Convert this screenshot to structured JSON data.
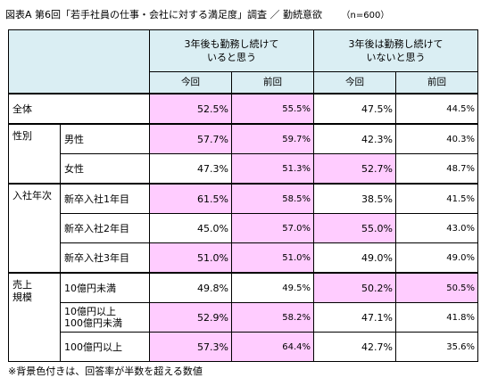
{
  "title": "図表A  第6回「若手社員の仕事・会社に対する満足度」調査  ／  勤続意欲",
  "sample": "（n=600）",
  "headers": {
    "group1": "3年後も勤務し続けて\nいると思う",
    "group2": "3年後は勤務し続けて\nいないと思う",
    "current": "今回",
    "previous": "前回"
  },
  "rows": [
    {
      "segment": "全体",
      "label": "",
      "v": [
        "52.5%",
        "55.5%",
        "47.5%",
        "44.5%"
      ],
      "hl": [
        1,
        1,
        0,
        0
      ]
    },
    {
      "segment": "性別",
      "label": "男性",
      "v": [
        "57.7%",
        "59.7%",
        "42.3%",
        "40.3%"
      ],
      "hl": [
        1,
        1,
        0,
        0
      ]
    },
    {
      "segment": "",
      "label": "女性",
      "v": [
        "47.3%",
        "51.3%",
        "52.7%",
        "48.7%"
      ],
      "hl": [
        0,
        1,
        1,
        0
      ]
    },
    {
      "segment": "入社年次",
      "label": "新卒入社1年目",
      "v": [
        "61.5%",
        "58.5%",
        "38.5%",
        "41.5%"
      ],
      "hl": [
        1,
        1,
        0,
        0
      ]
    },
    {
      "segment": "",
      "label": "新卒入社2年目",
      "v": [
        "45.0%",
        "57.0%",
        "55.0%",
        "43.0%"
      ],
      "hl": [
        0,
        1,
        1,
        0
      ]
    },
    {
      "segment": "",
      "label": "新卒入社3年目",
      "v": [
        "51.0%",
        "51.0%",
        "49.0%",
        "49.0%"
      ],
      "hl": [
        1,
        1,
        0,
        0
      ]
    },
    {
      "segment": "売上\n規模",
      "label": "10億円未満",
      "v": [
        "49.8%",
        "49.5%",
        "50.2%",
        "50.5%"
      ],
      "hl": [
        0,
        0,
        1,
        1
      ]
    },
    {
      "segment": "",
      "label": "10億円以上\n100億円未満",
      "v": [
        "52.9%",
        "58.2%",
        "47.1%",
        "41.8%"
      ],
      "hl": [
        1,
        1,
        0,
        0
      ]
    },
    {
      "segment": "",
      "label": "100億円以上",
      "v": [
        "57.3%",
        "64.4%",
        "42.7%",
        "35.6%"
      ],
      "hl": [
        1,
        1,
        0,
        0
      ]
    }
  ],
  "note": "※背景色付きは、回答率が半数を超える数値"
}
